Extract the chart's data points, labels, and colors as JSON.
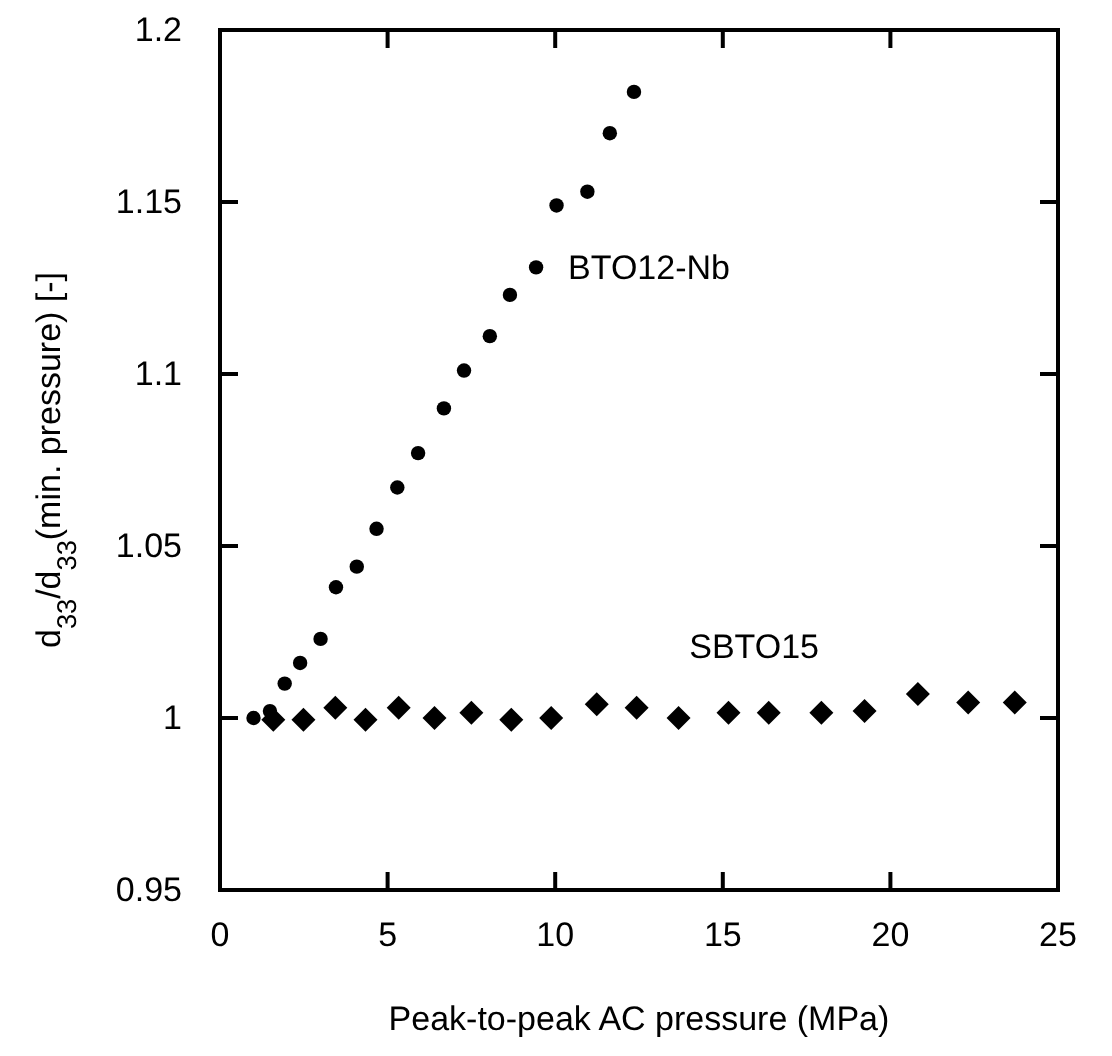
{
  "chart_data": {
    "type": "scatter",
    "xlabel": "Peak-to-peak AC pressure (MPa)",
    "ylabel": "d$_{33}$/d$_{33}$(min. pressure) [-]",
    "xlim": [
      0,
      25
    ],
    "xticks": [
      0,
      5,
      10,
      15,
      20,
      25
    ],
    "ylim": [
      0.95,
      1.2
    ],
    "yticks": [
      0.95,
      1,
      1.05,
      1.1,
      1.15,
      1.2
    ],
    "grid": false,
    "series": [
      {
        "name": "BTO12-Nb",
        "color": "#000000",
        "marker": "circle",
        "x": [
          1.0,
          1.49,
          1.93,
          2.39,
          3.0,
          3.46,
          4.08,
          4.67,
          5.29,
          5.91,
          6.68,
          7.28,
          8.05,
          8.65,
          9.43,
          10.04,
          10.96,
          11.63,
          12.35
        ],
        "values": [
          1.0,
          1.002,
          1.01,
          1.016,
          1.023,
          1.038,
          1.044,
          1.055,
          1.067,
          1.077,
          1.09,
          1.101,
          1.111,
          1.123,
          1.131,
          1.149,
          1.153,
          1.17,
          1.182
        ]
      },
      {
        "name": "SBTO15",
        "color": "#000000",
        "marker": "diamond",
        "x": [
          1.59,
          2.49,
          3.44,
          4.34,
          5.33,
          6.4,
          7.5,
          8.69,
          9.88,
          11.24,
          12.43,
          13.68,
          15.17,
          16.37,
          17.94,
          19.23,
          20.82,
          22.32,
          23.71
        ],
        "values": [
          0.9995,
          0.9995,
          1.003,
          0.9995,
          1.003,
          1.0,
          1.0015,
          0.9995,
          1.0,
          1.004,
          1.003,
          1.0,
          1.0015,
          1.0015,
          1.0015,
          1.002,
          1.007,
          1.0045,
          1.0045
        ]
      }
    ]
  }
}
